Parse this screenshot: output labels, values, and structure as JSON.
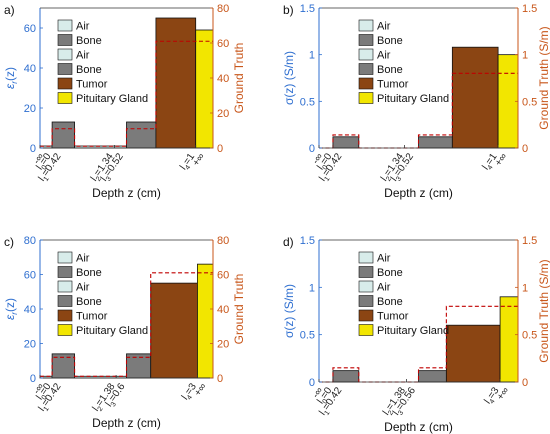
{
  "colors": {
    "left_axis": "#2f6fd0",
    "right_axis": "#c8561a",
    "air": "#d8ecea",
    "bone": "#7b7b7b",
    "tumor": "#8b4513",
    "pituitary": "#f2e600",
    "ground_truth": "#c00000",
    "frame": "#333333"
  },
  "legend_labels": [
    "Air",
    "Bone",
    "Air",
    "Bone",
    "Tumor",
    "Pituitary Gland"
  ],
  "chart_data": [
    {
      "panel": "a)",
      "type": "bar",
      "xlabel": "Depth z (cm)",
      "ylabel": "εr(z)",
      "ylabel_main": "ε",
      "ylabel_sub": "r",
      "ylabel_rest": "(z)",
      "y2label": "Ground Truth",
      "ylim": [
        0,
        70
      ],
      "yticks": [
        0,
        20,
        40,
        60
      ],
      "y2lim": [
        0,
        80
      ],
      "y2ticks": [
        0,
        20,
        40,
        60,
        80
      ],
      "segments": [
        {
          "material": "Air",
          "start": 0.0,
          "end": 0.07,
          "value": 1
        },
        {
          "material": "Bone",
          "start": 0.07,
          "end": 0.2,
          "value": 13
        },
        {
          "material": "Air",
          "start": 0.2,
          "end": 0.5,
          "value": 1
        },
        {
          "material": "Bone",
          "start": 0.5,
          "end": 0.67,
          "value": 13
        },
        {
          "material": "Tumor",
          "start": 0.67,
          "end": 0.9,
          "value": 65
        },
        {
          "material": "Pituitary Gland",
          "start": 0.9,
          "end": 1.0,
          "value": 59
        }
      ],
      "ground_truth": [
        {
          "start": 0.0,
          "end": 0.07,
          "value": 1
        },
        {
          "start": 0.07,
          "end": 0.2,
          "value": 11
        },
        {
          "start": 0.2,
          "end": 0.5,
          "value": 1
        },
        {
          "start": 0.5,
          "end": 0.67,
          "value": 11
        },
        {
          "start": 0.67,
          "end": 1.0,
          "value": 61
        }
      ],
      "ticks": [
        {
          "pos": 0.0,
          "line1": "-∞",
          "line2": ""
        },
        {
          "pos": 0.07,
          "line1": "l0=0",
          "line2": "l1=0.42"
        },
        {
          "pos": 0.43,
          "line1": "l2=1.34",
          "line2": "l3=0.52"
        },
        {
          "pos": 0.9,
          "line1": "l4=1",
          "line2": "+∞"
        }
      ]
    },
    {
      "panel": "b)",
      "type": "bar",
      "xlabel": "Depth z (cm)",
      "ylabel": "σ(z) (S/m)",
      "ylabel_main": "σ(z) (S/m)",
      "ylabel_sub": "",
      "ylabel_rest": "",
      "y2label": "Ground Truth (S/m)",
      "ylim": [
        0,
        1.5
      ],
      "yticks": [
        0,
        0.5,
        1,
        1.5
      ],
      "y2lim": [
        0,
        1.5
      ],
      "y2ticks": [
        0,
        0.5,
        1,
        1.5
      ],
      "segments": [
        {
          "material": "Air",
          "start": 0.0,
          "end": 0.07,
          "value": 0
        },
        {
          "material": "Bone",
          "start": 0.07,
          "end": 0.2,
          "value": 0.12
        },
        {
          "material": "Air",
          "start": 0.2,
          "end": 0.5,
          "value": 0
        },
        {
          "material": "Bone",
          "start": 0.5,
          "end": 0.67,
          "value": 0.12
        },
        {
          "material": "Tumor",
          "start": 0.67,
          "end": 0.9,
          "value": 1.08
        },
        {
          "material": "Pituitary Gland",
          "start": 0.9,
          "end": 1.0,
          "value": 1.0
        }
      ],
      "ground_truth": [
        {
          "start": 0.0,
          "end": 0.07,
          "value": 0
        },
        {
          "start": 0.07,
          "end": 0.2,
          "value": 0.14
        },
        {
          "start": 0.2,
          "end": 0.5,
          "value": 0
        },
        {
          "start": 0.5,
          "end": 0.67,
          "value": 0.14
        },
        {
          "start": 0.67,
          "end": 1.0,
          "value": 0.8
        }
      ],
      "ticks": [
        {
          "pos": 0.0,
          "line1": "-∞",
          "line2": ""
        },
        {
          "pos": 0.07,
          "line1": "l0=0",
          "line2": "l1=0.42"
        },
        {
          "pos": 0.43,
          "line1": "l2=1.34",
          "line2": "l3=0.52"
        },
        {
          "pos": 0.9,
          "line1": "l4=1",
          "line2": "+∞"
        }
      ]
    },
    {
      "panel": "c)",
      "type": "bar",
      "xlabel": "Depth z (cm)",
      "ylabel": "εr(z)",
      "ylabel_main": "ε",
      "ylabel_sub": "r",
      "ylabel_rest": "(z)",
      "y2label": "Ground Truth",
      "ylim": [
        0,
        80
      ],
      "yticks": [
        0,
        20,
        40,
        60,
        80
      ],
      "y2lim": [
        0,
        80
      ],
      "y2ticks": [
        0,
        20,
        40,
        60,
        80
      ],
      "segments": [
        {
          "material": "Air",
          "start": 0.0,
          "end": 0.07,
          "value": 1
        },
        {
          "material": "Bone",
          "start": 0.07,
          "end": 0.2,
          "value": 14
        },
        {
          "material": "Air",
          "start": 0.2,
          "end": 0.5,
          "value": 1
        },
        {
          "material": "Bone",
          "start": 0.5,
          "end": 0.64,
          "value": 14
        },
        {
          "material": "Tumor",
          "start": 0.64,
          "end": 0.91,
          "value": 55
        },
        {
          "material": "Pituitary Gland",
          "start": 0.91,
          "end": 1.0,
          "value": 66
        }
      ],
      "ground_truth": [
        {
          "start": 0.0,
          "end": 0.07,
          "value": 1
        },
        {
          "start": 0.07,
          "end": 0.2,
          "value": 12
        },
        {
          "start": 0.2,
          "end": 0.5,
          "value": 1
        },
        {
          "start": 0.5,
          "end": 0.64,
          "value": 12
        },
        {
          "start": 0.64,
          "end": 1.0,
          "value": 61
        }
      ],
      "ticks": [
        {
          "pos": 0.0,
          "line1": "-∞",
          "line2": ""
        },
        {
          "pos": 0.07,
          "line1": "l0=0",
          "line2": "l1=0.42"
        },
        {
          "pos": 0.44,
          "line1": "l2=1.38",
          "line2": "l3=0.6"
        },
        {
          "pos": 0.91,
          "line1": "l4=3",
          "line2": "+∞"
        }
      ]
    },
    {
      "panel": "d)",
      "type": "bar",
      "xlabel": "Depth z (cm)",
      "ylabel": "σ(z) (S/m)",
      "ylabel_main": "σ(z) (S/m)",
      "ylabel_sub": "",
      "ylabel_rest": "",
      "y2label": "Ground Truth (S/m)",
      "ylim": [
        0,
        1.5
      ],
      "yticks": [
        0,
        0.5,
        1,
        1.5
      ],
      "y2lim": [
        0,
        1.5
      ],
      "y2ticks": [
        0,
        0.5,
        1,
        1.5
      ],
      "segments": [
        {
          "material": "Air",
          "start": 0.0,
          "end": 0.07,
          "value": 0
        },
        {
          "material": "Bone",
          "start": 0.07,
          "end": 0.2,
          "value": 0.12
        },
        {
          "material": "Air",
          "start": 0.2,
          "end": 0.5,
          "value": 0
        },
        {
          "material": "Bone",
          "start": 0.5,
          "end": 0.64,
          "value": 0.12
        },
        {
          "material": "Tumor",
          "start": 0.64,
          "end": 0.91,
          "value": 0.6
        },
        {
          "material": "Pituitary Gland",
          "start": 0.91,
          "end": 1.0,
          "value": 0.9
        }
      ],
      "ground_truth": [
        {
          "start": 0.0,
          "end": 0.07,
          "value": 0
        },
        {
          "start": 0.07,
          "end": 0.2,
          "value": 0.15
        },
        {
          "start": 0.2,
          "end": 0.5,
          "value": 0
        },
        {
          "start": 0.5,
          "end": 0.64,
          "value": 0.15
        },
        {
          "start": 0.64,
          "end": 1.0,
          "value": 0.8
        }
      ],
      "ticks": [
        {
          "pos": 0.0,
          "line1": "-∞",
          "line2": ""
        },
        {
          "pos": 0.07,
          "line1": "l0=0",
          "line2": "l1=0.42"
        },
        {
          "pos": 0.44,
          "line1": "l2=1.38",
          "line2": "l3=0.56"
        },
        {
          "pos": 0.91,
          "line1": "l4=3",
          "line2": "+∞"
        }
      ]
    }
  ]
}
